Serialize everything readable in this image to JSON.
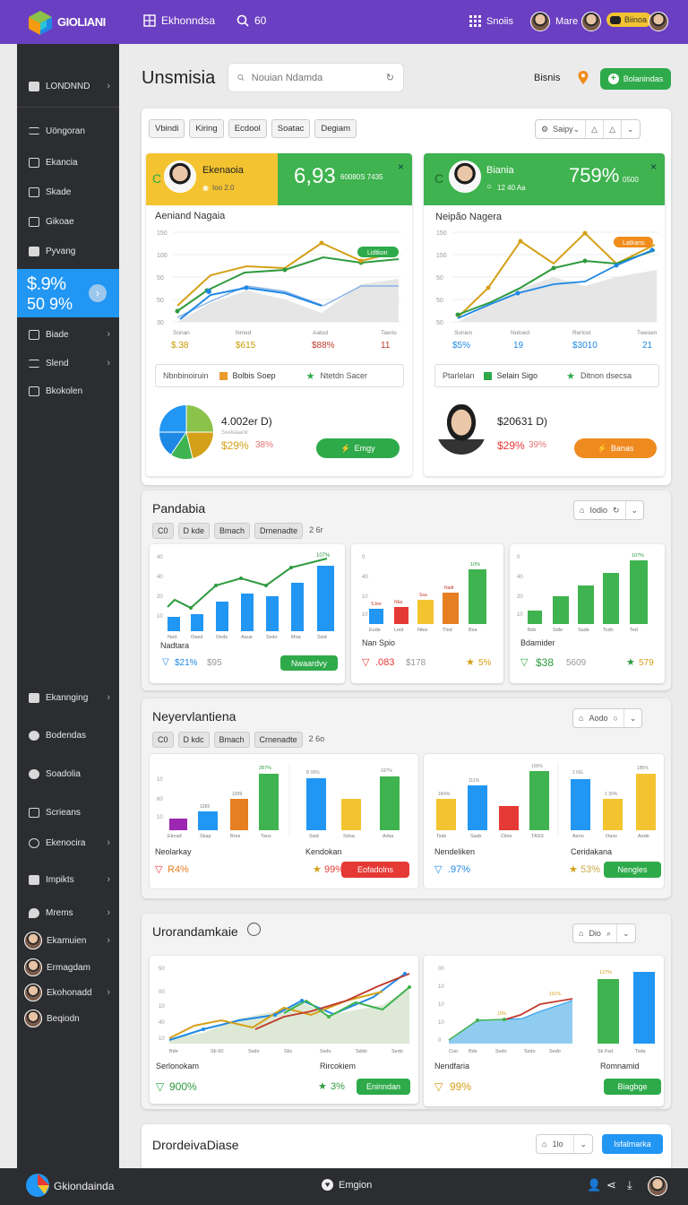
{
  "topbar": {
    "logo_text": "GIOLIANI",
    "logo_sub": "",
    "nav_label": "Ekhonndsa",
    "search_label": "60",
    "grid_label": "Snoiis",
    "user_label": "Mare",
    "badge_label": "Biinoa"
  },
  "sidebar": {
    "top_item": "LONDNND",
    "items": [
      "Uöngoran",
      "Ekancia",
      "Skade",
      "Gikoae",
      "Pyvang"
    ],
    "promo": {
      "line1": "$.9%",
      "line2": "50 9%"
    },
    "items2": [
      "Biade",
      "Slend",
      "Bkokolen"
    ],
    "items3": [
      "Ekannging",
      "Bodendas",
      "Soadolia",
      "Scrieans",
      "Ekenocira",
      "Impikts",
      "Mrems"
    ],
    "users": [
      "Ekamuien",
      "Ermagdam",
      "Ekohonadd",
      "Beqiodn"
    ]
  },
  "header": {
    "title": "Unsmisia",
    "search_placeholder": "Nouian Ndamda",
    "link": "Bisnis",
    "button": "Bolanindas"
  },
  "panel1": {
    "tabs": [
      "Vbindi",
      "Kiring",
      "Ecdool",
      "Soatac",
      "Degiam"
    ],
    "control": "Saipy",
    "card1": {
      "name": "Ekenaoia",
      "sub": "Ioo 2.0",
      "big": "6,93",
      "big_sub": "60080S 7435",
      "chart_title": "Aeniand Nagaia",
      "y_ticks": [
        "150",
        "100",
        "50",
        "50",
        "30"
      ],
      "x_labels": [
        "Sonan",
        "Nmed",
        "Aatud",
        "Taerio"
      ],
      "x_values": [
        "$.38",
        "$615",
        "$88%",
        "11"
      ],
      "tag": "Lidtkon",
      "legend": {
        "a": "Nbnbinoiruin",
        "b": "Bolbis Soep",
        "c": "Ntetdn Sacer"
      },
      "pie_value": "4.002er D)",
      "pie_sub": "Seeliaaanir",
      "pie_pct1": "$29%",
      "pie_pct2": "38%",
      "button": "Emgy"
    },
    "card2": {
      "name": "Biania",
      "sub": "12 40 Aa",
      "big": "759%",
      "big_sub": "0500",
      "chart_title": "Neipão Nagera",
      "y_ticks": [
        "150",
        "150",
        "50",
        "50",
        "50"
      ],
      "x_labels": [
        "Sonien",
        "Notoed",
        "Rerlcet",
        "Twesen"
      ],
      "x_values": [
        "$5%",
        "19",
        "$3010",
        "21"
      ],
      "tag": "Latkans",
      "legend": {
        "a": "Ptarlelan",
        "b": "Selain Sigo",
        "c": "Ditnon dsecsa"
      },
      "person_value": "$20631 D)",
      "person_pct1": "$29%",
      "person_pct2": "39%",
      "button": "Banas"
    }
  },
  "panel2": {
    "title": "Pandabia",
    "tabs": [
      "C0",
      "D kde",
      "Bmach",
      "Drnenadte"
    ],
    "extra": "2 6r",
    "control": "Iodio",
    "cards": [
      {
        "name": "Nadtara",
        "v1": "$21%",
        "v2": "$95",
        "button": "Nwaardvy",
        "top": "107%"
      },
      {
        "name": "Nan Spio",
        "v1": ".083",
        "v2": "$178",
        "v3": "5%",
        "top": "10%"
      },
      {
        "name": "Bdamider",
        "v1": "$38",
        "v2": "5609",
        "v3": "579",
        "top": "107%"
      }
    ]
  },
  "panel3": {
    "title": "Neyervlantiena",
    "tabs": [
      "C0",
      "D kdc",
      "Bmach",
      "Crnenadte"
    ],
    "extra": "2 6o",
    "control": "Aodo",
    "cards": [
      {
        "name": "Neolarkay",
        "v1": "R4%",
        "button": "",
        "top": "287%"
      },
      {
        "name": "Kendokan",
        "v1": "99%",
        "button": "Eofadolns"
      },
      {
        "name": "Nendeliken",
        "v1": ".97%"
      },
      {
        "name": "Ceridakana",
        "v1": "53%",
        "button": "Nengles"
      }
    ]
  },
  "panel4": {
    "title": "Urorandamkaie",
    "control": "Dio",
    "cards": [
      {
        "name": "Serlonokam",
        "name2": "Rircokiem",
        "v1": "900%",
        "v2": "3%",
        "button": "Eninndan"
      },
      {
        "name": "Nendfaria",
        "name2": "Romnamid",
        "v1": "99%",
        "button": "Biagbge"
      }
    ]
  },
  "panel5": {
    "title": "DrordeivaDiase",
    "control": "1lo",
    "button": "Isfalmarka"
  },
  "bottombar": {
    "left": "Gkiondainda",
    "center": "Emgion"
  }
}
